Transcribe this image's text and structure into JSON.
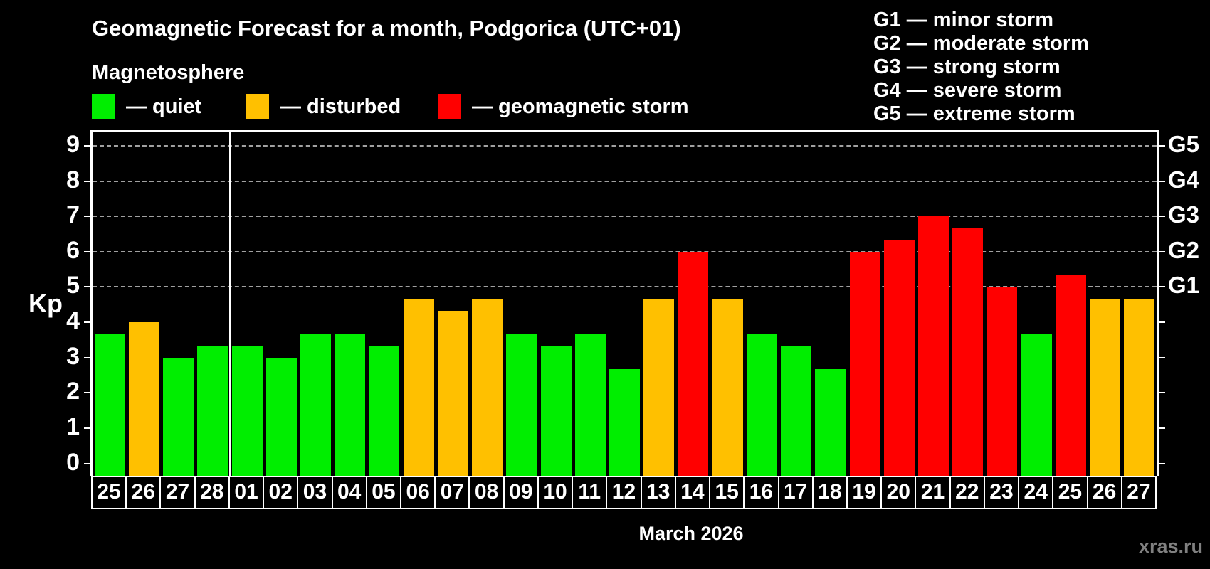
{
  "colors": {
    "quiet": "#00ee00",
    "disturbed": "#ffc000",
    "storm": "#ff0000",
    "grid": "#a0a0a0",
    "axis": "#ffffff",
    "watermark": "#808080",
    "background": "#000000"
  },
  "legend": [
    {
      "key": "quiet",
      "label": "— quiet"
    },
    {
      "key": "disturbed",
      "label": "— disturbed"
    },
    {
      "key": "storm",
      "label": "— geomagnetic storm"
    }
  ],
  "g_legend": [
    "G1 — minor storm",
    "G2 — moderate storm",
    "G3 — strong storm",
    "G4 — severe storm",
    "G5 — extreme storm"
  ],
  "watermark": "xras.ru",
  "chart_data": {
    "type": "bar",
    "title": "Geomagnetic Forecast for a month, Podgorica (UTC+01)",
    "subtitle": "Magnetosphere",
    "ylabel": "Kp",
    "xlabel": "March 2026",
    "ylim": [
      0,
      9
    ],
    "yticks": [
      0,
      1,
      2,
      3,
      4,
      5,
      6,
      7,
      8,
      9
    ],
    "grid": "dashed horizontal at storm levels only",
    "legend_position": "top",
    "storm_levels": [
      {
        "kp": 5,
        "label": "G1"
      },
      {
        "kp": 6,
        "label": "G2"
      },
      {
        "kp": 7,
        "label": "G3"
      },
      {
        "kp": 8,
        "label": "G4"
      },
      {
        "kp": 9,
        "label": "G5"
      }
    ],
    "categories": [
      "25",
      "26",
      "27",
      "28",
      "01",
      "02",
      "03",
      "04",
      "05",
      "06",
      "07",
      "08",
      "09",
      "10",
      "11",
      "12",
      "13",
      "14",
      "15",
      "16",
      "17",
      "18",
      "19",
      "20",
      "21",
      "22",
      "23",
      "24",
      "25",
      "26",
      "27"
    ],
    "values": [
      3.67,
      4.0,
      3.0,
      3.33,
      3.33,
      3.0,
      3.67,
      3.67,
      3.33,
      4.67,
      4.33,
      4.67,
      3.67,
      3.33,
      3.67,
      2.67,
      4.67,
      6.0,
      4.67,
      3.67,
      3.33,
      2.67,
      6.0,
      6.33,
      7.0,
      6.67,
      5.0,
      3.67,
      5.33,
      4.67,
      4.67
    ],
    "states": [
      "quiet",
      "disturbed",
      "quiet",
      "quiet",
      "quiet",
      "quiet",
      "quiet",
      "quiet",
      "quiet",
      "disturbed",
      "disturbed",
      "disturbed",
      "quiet",
      "quiet",
      "quiet",
      "quiet",
      "disturbed",
      "storm",
      "disturbed",
      "quiet",
      "quiet",
      "quiet",
      "storm",
      "storm",
      "storm",
      "storm",
      "storm",
      "quiet",
      "storm",
      "disturbed",
      "disturbed"
    ],
    "month_separator_after_index": 3
  }
}
